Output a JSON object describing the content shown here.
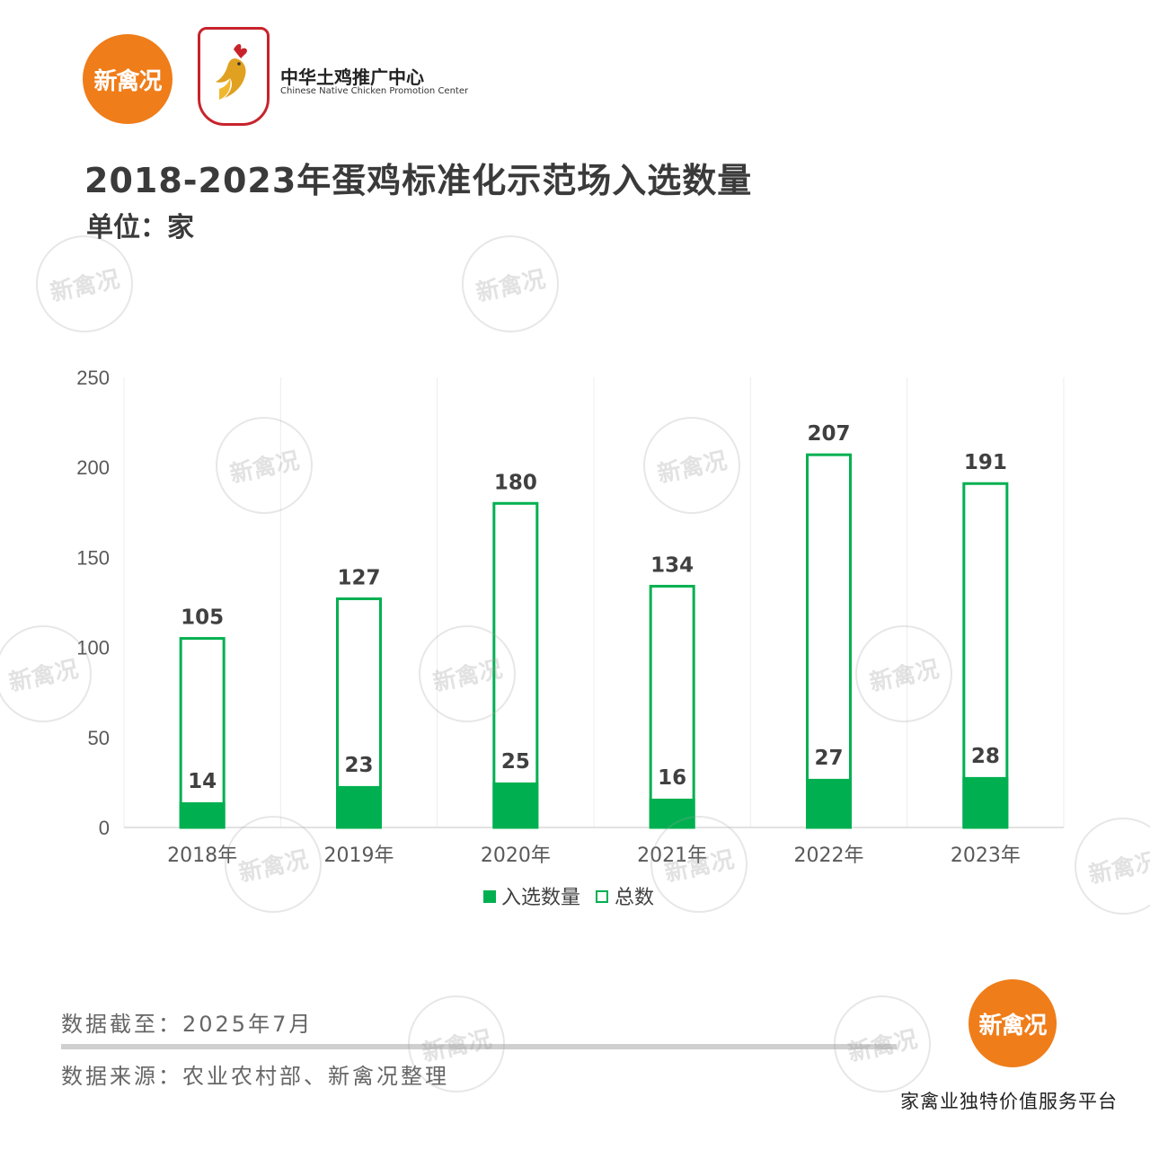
{
  "brand": {
    "logo_text": "新禽况",
    "org_name": "中华土鸡推广中心",
    "org_sub": "Chinese Native Chicken Promotion Center"
  },
  "header": {
    "title": "2018-2023年蛋鸡标准化示范场入选数量",
    "unit": "单位：家"
  },
  "footer": {
    "data_cutoff": "数据截至：2025年7月",
    "data_source": "数据来源：农业农村部、新禽况整理",
    "slogan": "家禽业独特价值服务平台",
    "logo_text": "新禽况"
  },
  "watermark_text": "新禽况",
  "colors": {
    "accent": "#00b050",
    "orange": "#ef7d1a",
    "red": "#c8232c"
  },
  "chart_data": {
    "type": "bar",
    "categories": [
      "2018年",
      "2019年",
      "2020年",
      "2021年",
      "2022年",
      "2023年"
    ],
    "series": [
      {
        "name": "入选数量",
        "values": [
          14,
          23,
          25,
          16,
          27,
          28
        ],
        "style": "filled"
      },
      {
        "name": "总数",
        "values": [
          105,
          127,
          180,
          134,
          207,
          191
        ],
        "style": "outline"
      }
    ],
    "yticks": [
      0,
      50,
      100,
      150,
      200,
      250
    ],
    "ylim": [
      0,
      250
    ],
    "grid": "vertical",
    "legend": "bottom-center"
  }
}
